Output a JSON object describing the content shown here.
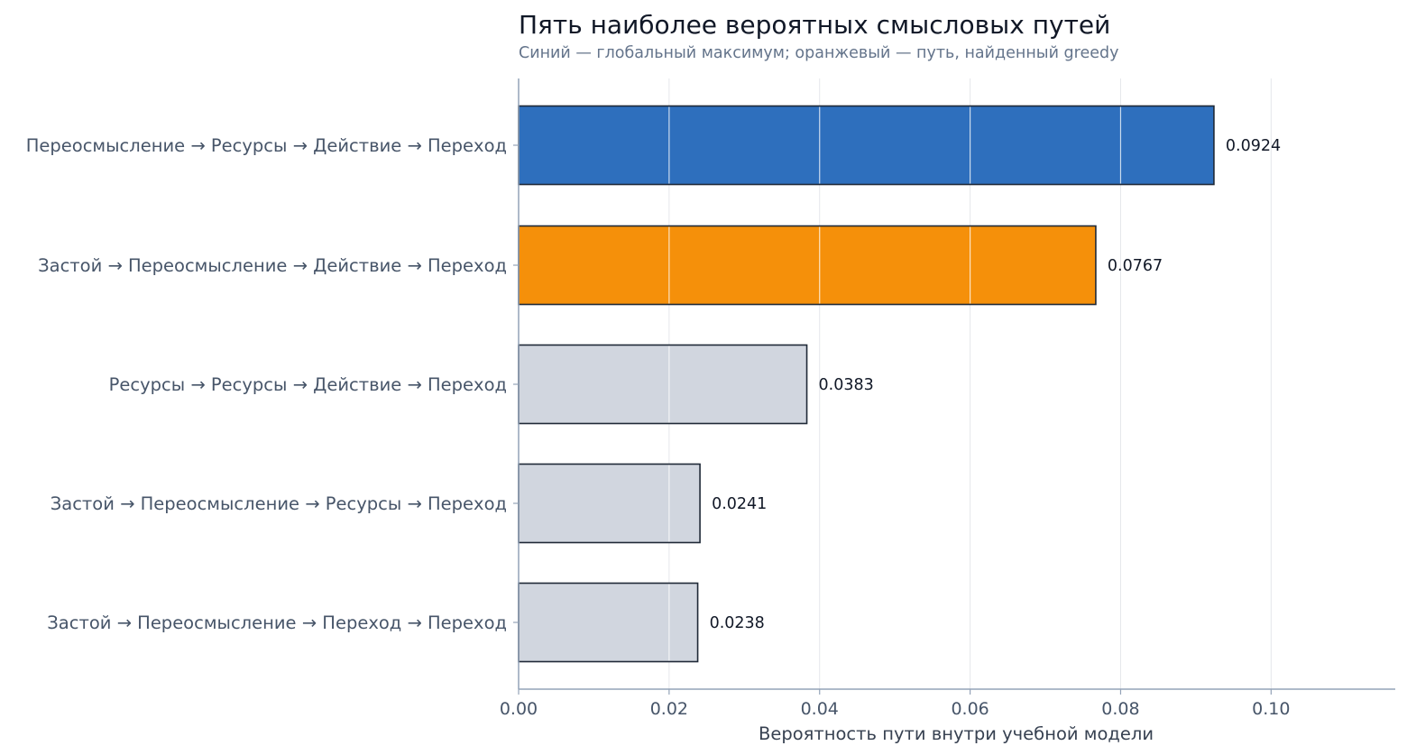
{
  "chart_data": {
    "type": "bar",
    "orientation": "horizontal",
    "title": "Пять наиболее вероятных смысловых путей",
    "subtitle": "Синий — глобальный максимум; оранжевый — путь, найденный greedy",
    "xlabel": "Вероятность пути внутри учебной модели",
    "ylabel": "",
    "categories": [
      "Переосмысление → Ресурсы → Действие → Переход",
      "Застой → Переосмысление → Действие → Переход",
      "Ресурсы → Ресурсы → Действие → Переход",
      "Застой → Переосмысление → Ресурсы → Переход",
      "Застой → Переосмысление → Переход → Переход"
    ],
    "values": [
      0.0924,
      0.0767,
      0.0383,
      0.0241,
      0.0238
    ],
    "value_labels": [
      "0.0924",
      "0.0767",
      "0.0383",
      "0.0241",
      "0.0238"
    ],
    "bar_colors": [
      "#2e6fbd",
      "#f5900a",
      "#d1d6df",
      "#d1d6df",
      "#d1d6df"
    ],
    "xlim": [
      0,
      0.1165
    ],
    "xticks": [
      0.0,
      0.02,
      0.04,
      0.06,
      0.08,
      0.1
    ],
    "xtick_labels": [
      "0.00",
      "0.02",
      "0.04",
      "0.06",
      "0.08",
      "0.10"
    ],
    "grid": "vertical"
  },
  "colors": {
    "global_max": "#2e6fbd",
    "greedy": "#f5900a",
    "other": "#d1d6df",
    "bar_edge": "#1f2937",
    "grid": "#e5e7eb",
    "axis": "#94a3b8"
  }
}
